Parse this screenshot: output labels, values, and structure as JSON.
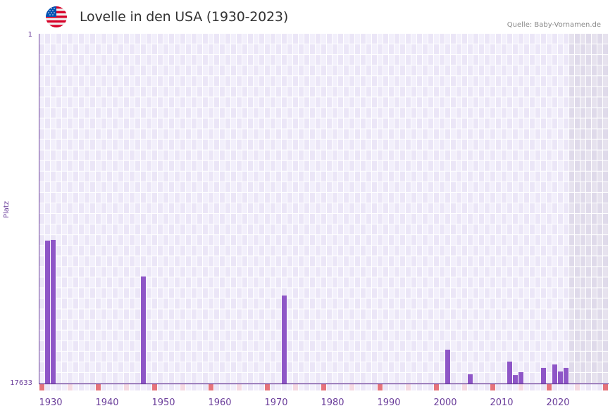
{
  "header": {
    "title": "Lovelle in den USA (1930-2023)",
    "source": "Quelle: Baby-Vornamen.de",
    "flag_icon": "us-flag-icon"
  },
  "axis": {
    "y_title": "Platz",
    "y_top_label": "1",
    "y_bottom_label": "17633"
  },
  "colors": {
    "bar": "#8e56c7",
    "axis": "#6a3d9a",
    "grid_a": "#f2effb",
    "grid_b": "#ebe6f7",
    "future_a": "#e6e2ee",
    "future_b": "#dfdaea",
    "marker_decade": "#e5737b",
    "marker_half": "#f5d9e2"
  },
  "chart_data": {
    "type": "bar",
    "title": "Lovelle in den USA (1930-2023)",
    "xlabel": "",
    "ylabel": "Platz",
    "y_inverted": true,
    "ylim": [
      1,
      17633
    ],
    "x_range": [
      1929,
      2029
    ],
    "x_ticks": [
      1930,
      1940,
      1950,
      1960,
      1970,
      1980,
      1990,
      2000,
      2010,
      2020
    ],
    "future_shaded_from": 2023,
    "grid": true,
    "legend": null,
    "x": [
      1930,
      1931,
      1947,
      1972,
      2001,
      2005,
      2012,
      2013,
      2014,
      2018,
      2020,
      2021,
      2022
    ],
    "values": [
      10430,
      10395,
      12240,
      13200,
      15930,
      17170,
      16530,
      17210,
      17065,
      16850,
      16675,
      17030,
      16850
    ]
  }
}
